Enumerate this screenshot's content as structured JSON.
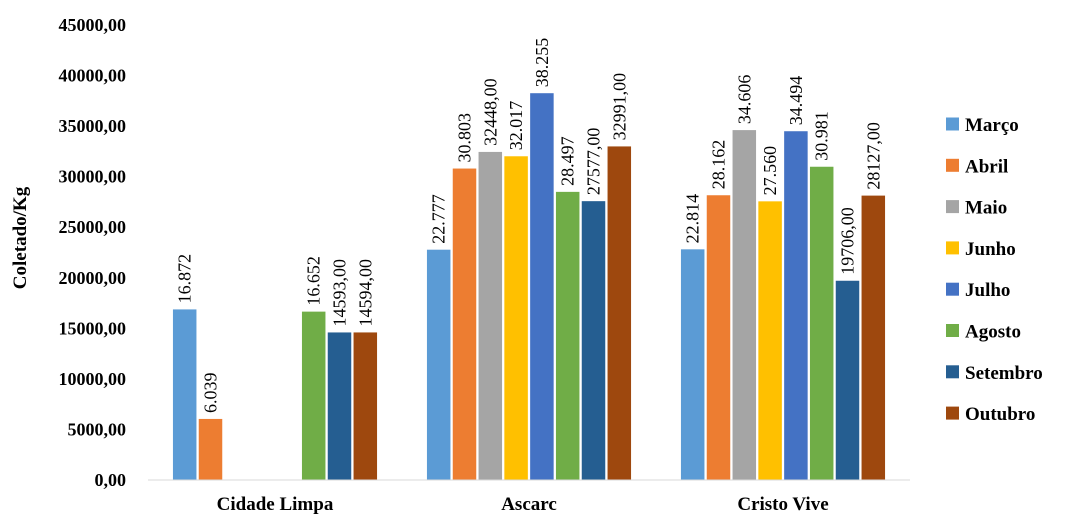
{
  "chart_data": {
    "type": "bar",
    "ylabel": "Coletado/Kg",
    "xlabel": "",
    "ylim": [
      0,
      45000
    ],
    "yticks": [
      0,
      5000,
      10000,
      15000,
      20000,
      25000,
      30000,
      35000,
      40000,
      45000
    ],
    "ytick_labels": [
      "0,00",
      "5000,00",
      "10000,00",
      "15000,00",
      "20000,00",
      "25000,00",
      "30000,00",
      "35000,00",
      "40000,00",
      "45000,00"
    ],
    "grid": false,
    "legend_position": "right",
    "categories": [
      "Cidade Limpa",
      "Ascarc",
      "Cristo Vive"
    ],
    "series": [
      {
        "name": "Março",
        "color": "#5B9BD5",
        "values": [
          16872,
          22777,
          22814
        ],
        "labels": [
          "16.872",
          "22.777",
          "22.814"
        ]
      },
      {
        "name": "Abril",
        "color": "#ED7D31",
        "values": [
          6039,
          30803,
          28162
        ],
        "labels": [
          "6.039",
          "30.803",
          "28.162"
        ]
      },
      {
        "name": "Maio",
        "color": "#A5A5A5",
        "values": [
          null,
          32448,
          34606
        ],
        "labels": [
          "",
          "32448,00",
          "34.606"
        ]
      },
      {
        "name": "Junho",
        "color": "#FFC000",
        "values": [
          null,
          32017,
          27560
        ],
        "labels": [
          "",
          "32.017",
          "27.560"
        ]
      },
      {
        "name": "Julho",
        "color": "#4472C4",
        "values": [
          null,
          38255,
          34494
        ],
        "labels": [
          "",
          "38.255",
          "34.494"
        ]
      },
      {
        "name": "Agosto",
        "color": "#70AD47",
        "values": [
          16652,
          28497,
          30981
        ],
        "labels": [
          "16.652",
          "28.497",
          "30.981"
        ]
      },
      {
        "name": "Setembro",
        "color": "#255E91",
        "values": [
          14593,
          27577,
          19706
        ],
        "labels": [
          "14593,00",
          "27577,00",
          "19706,00"
        ]
      },
      {
        "name": "Outubro",
        "color": "#9E480E",
        "values": [
          14594,
          32991,
          28127
        ],
        "labels": [
          "14594,00",
          "32991,00",
          "28127,00"
        ]
      }
    ]
  }
}
